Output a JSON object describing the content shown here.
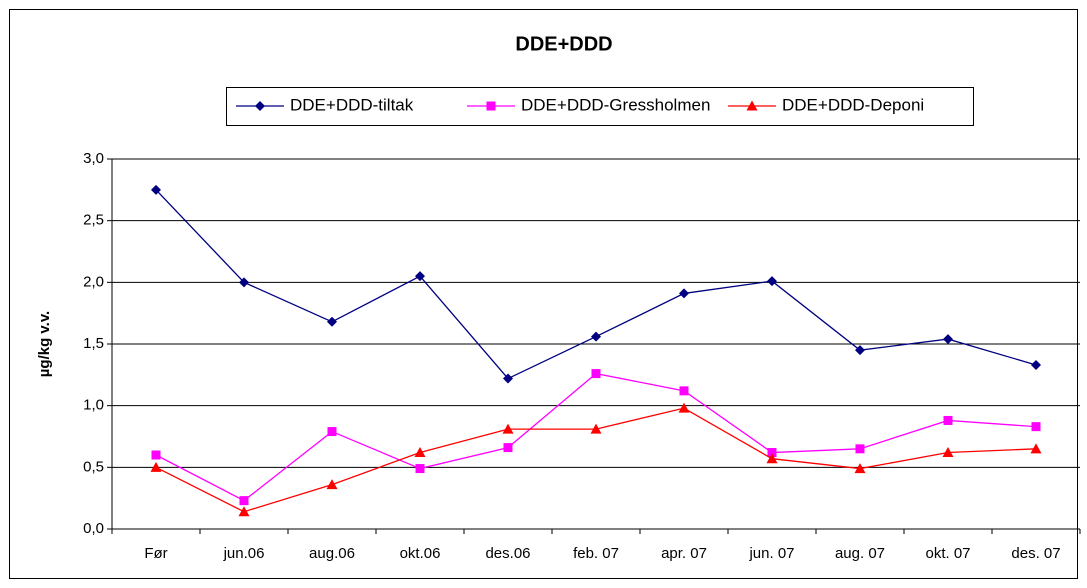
{
  "chart_data": {
    "type": "line",
    "title": "DDE+DDD",
    "y_label": "µg/kg v.v.",
    "categories": [
      "Før",
      "jun.06",
      "aug.06",
      "okt.06",
      "des.06",
      "feb. 07",
      "apr. 07",
      "jun. 07",
      "aug. 07",
      "okt. 07",
      "des. 07"
    ],
    "series": [
      {
        "name": "DDE+DDD-tiltak",
        "color": "#000080",
        "marker": "diamond",
        "values": [
          2.75,
          2.0,
          1.68,
          2.05,
          1.22,
          1.56,
          1.91,
          2.01,
          1.45,
          1.54,
          1.33
        ]
      },
      {
        "name": "DDE+DDD-Gressholmen",
        "color": "#ff00ff",
        "marker": "square",
        "values": [
          0.6,
          0.23,
          0.79,
          0.49,
          0.66,
          1.26,
          1.12,
          0.62,
          0.65,
          0.88,
          0.83
        ]
      },
      {
        "name": "DDE+DDD-Deponi",
        "color": "#ff0000",
        "marker": "triangle",
        "values": [
          0.5,
          0.14,
          0.36,
          0.62,
          0.81,
          0.81,
          0.98,
          0.57,
          0.49,
          0.62,
          0.65
        ]
      }
    ],
    "ylim": [
      0,
      3
    ],
    "yticks": [
      {
        "value": 0,
        "label": "0,0"
      },
      {
        "value": 0.5,
        "label": "0,5"
      },
      {
        "value": 1,
        "label": "1,0"
      },
      {
        "value": 1.5,
        "label": "1,5"
      },
      {
        "value": 2,
        "label": "2,0"
      },
      {
        "value": 2.5,
        "label": "2,5"
      },
      {
        "value": 3,
        "label": "3,0"
      }
    ],
    "grid": true,
    "legend": "top"
  }
}
